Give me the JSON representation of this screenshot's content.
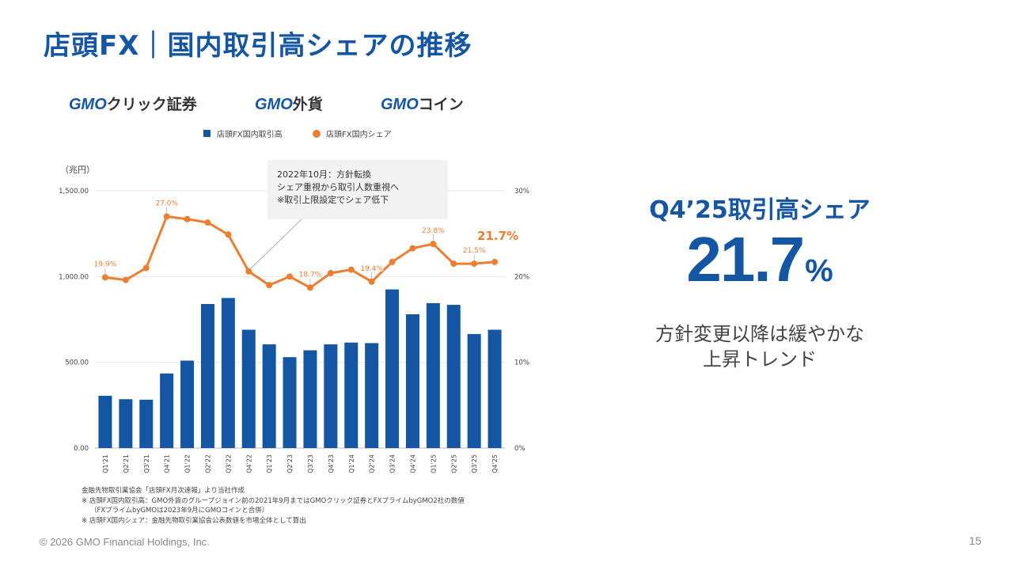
{
  "page": {
    "title": "店頭FX｜国内取引高シェアの推移",
    "copyright": "© 2026 GMO Financial Holdings, Inc.",
    "page_number": "15"
  },
  "brands": [
    {
      "prefix": "GMO",
      "suffix": "クリック証券"
    },
    {
      "prefix": "GMO",
      "suffix": "外貨"
    },
    {
      "prefix": "GMO",
      "suffix": "コイン"
    }
  ],
  "side": {
    "title": "Q4’25取引高シェア",
    "value": "21.7",
    "unit": "%",
    "desc_line1": "方針変更以降は緩やかな",
    "desc_line2": "上昇トレンド"
  },
  "footnotes": [
    "金融先物取引業協会「店頭FX月次速報」より当社作成",
    "※ 店頭FX国内取引高：GMO外貨のグループジョイン前の2021年9月まではGMOクリック証券とFXプライムbyGMO2社の数値",
    "（FXプライムbyGMOは2023年9月にGMOコインと合併）",
    "※ 店頭FX国内シェア：金融先物取引業協会公表数値を市場全体として算出"
  ],
  "colors": {
    "bar": "#1455a4",
    "line": "#ed7d31",
    "title": "#1455a4",
    "red": "#e8151b"
  },
  "chart_data": {
    "type": "bar+line",
    "categories": [
      "Q1'21",
      "Q2'21",
      "Q3'21",
      "Q4'21",
      "Q1'22",
      "Q2'22",
      "Q3'22",
      "Q4'22",
      "Q1'23",
      "Q2'23",
      "Q3'23",
      "Q4'23",
      "Q1'24",
      "Q2'24",
      "Q3'24",
      "Q4'24",
      "Q1'25",
      "Q2'25",
      "Q3'25",
      "Q4'25"
    ],
    "series": [
      {
        "name": "店頭FX国内取引高",
        "axis": "left",
        "kind": "bar",
        "values": [
          305,
          285,
          282,
          435,
          510,
          840,
          875,
          690,
          605,
          530,
          570,
          605,
          615,
          612,
          925,
          780,
          845,
          835,
          665,
          690
        ]
      },
      {
        "name": "店頭FX国内シェア",
        "axis": "right",
        "kind": "line",
        "values": [
          19.9,
          19.6,
          21.0,
          27.0,
          26.7,
          26.3,
          24.9,
          20.6,
          19.0,
          20.0,
          18.7,
          20.4,
          20.8,
          19.4,
          21.7,
          23.3,
          23.8,
          21.5,
          21.5,
          21.7
        ]
      }
    ],
    "point_labels": [
      {
        "index": 0,
        "text": "19.9%"
      },
      {
        "index": 3,
        "text": "27.0%"
      },
      {
        "index": 10,
        "text": "18.7%"
      },
      {
        "index": 13,
        "text": "19.4%"
      },
      {
        "index": 16,
        "text": "23.8%"
      },
      {
        "index": 18,
        "text": "21.5%"
      },
      {
        "index": 19,
        "text": "21.7%",
        "highlight": true
      }
    ],
    "left_axis": {
      "label": "（兆円）",
      "ticks": [
        "0.00",
        "500.00",
        "1,000.00",
        "1,500.00"
      ],
      "range": [
        0,
        1500
      ]
    },
    "right_axis": {
      "ticks": [
        "0%",
        "10%",
        "20%",
        "30%"
      ],
      "range": [
        0,
        30
      ]
    },
    "annotation": {
      "index": 7,
      "lines": [
        "2022年10月：方針転換",
        "シェア重視から取引人数重視へ",
        "※取引上限設定でシェア低下"
      ]
    },
    "legend": [
      "店頭FX国内取引高",
      "店頭FX国内シェア"
    ],
    "legend_position": "top"
  }
}
